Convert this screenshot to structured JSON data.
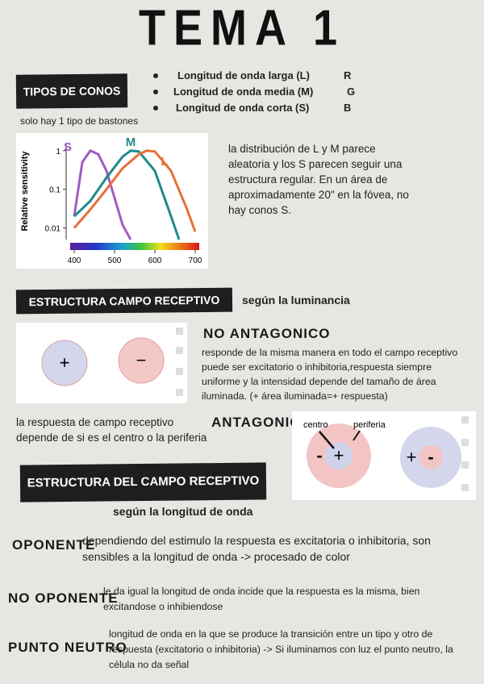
{
  "title": "TEMA 1",
  "tipos": {
    "label": "TIPOS DE CONOS",
    "note": "solo hay 1 tipo de bastones",
    "cones": [
      {
        "text": "Longitud de onda larga (L)",
        "letter": "R"
      },
      {
        "text": "Longitud de onda media (M)",
        "letter": "G"
      },
      {
        "text": "Longitud de onda corta (S)",
        "letter": "B"
      }
    ],
    "paragraph": "la distribución de L y M parece aleatoria y los S parecen seguir una estructura regular. En un área de aproximadamente 20\" en la fóvea, no hay conos S."
  },
  "chart_data": {
    "type": "line",
    "ylabel": "Relative sensitivity",
    "log_y": true,
    "xlim": [
      390,
      710
    ],
    "ylim": [
      0.005,
      1.6
    ],
    "xticks": [
      400,
      500,
      600,
      700
    ],
    "yticks": [
      1,
      0.1,
      0.01
    ],
    "series": [
      {
        "name": "S",
        "color": "#a05cc0",
        "x": [
          400,
          420,
          440,
          460,
          480,
          500,
          520,
          540
        ],
        "values": [
          0.02,
          0.5,
          1,
          0.8,
          0.3,
          0.06,
          0.012,
          0.005
        ]
      },
      {
        "name": "M",
        "color": "#1f8a8c",
        "x": [
          400,
          440,
          480,
          520,
          540,
          560,
          600,
          640,
          660
        ],
        "values": [
          0.02,
          0.05,
          0.2,
          0.7,
          1,
          0.95,
          0.3,
          0.02,
          0.005
        ]
      },
      {
        "name": "L",
        "color": "#e8703a",
        "x": [
          400,
          440,
          480,
          520,
          560,
          580,
          600,
          640,
          680,
          700
        ],
        "values": [
          0.01,
          0.03,
          0.1,
          0.35,
          0.8,
          1,
          0.95,
          0.3,
          0.03,
          0.008
        ]
      }
    ]
  },
  "luminancia": {
    "label": "ESTRUCTURA CAMPO RECEPTIVO",
    "subtitle": "según la luminancia",
    "no_antagonico": {
      "title": "NO ANTAGONICO",
      "text": "responde de la misma manera en todo el campo receptivo puede ser excitatorio o inhibitoria,respuesta siempre uniforme y la intensidad depende del tamaño de área iluminada. (+  área iluminada=+  respuesta)",
      "signs": [
        "+",
        "−"
      ]
    },
    "antagonico": {
      "title": "ANTAGONICO",
      "text": "la respuesta de campo receptivo depende de si es el centro o la periferia",
      "labels": [
        "centro",
        "periferia"
      ],
      "cells": [
        [
          "-",
          "+"
        ],
        [
          "+",
          "-"
        ]
      ]
    }
  },
  "longitud": {
    "label": "ESTRUCTURA DEL CAMPO RECEPTIVO",
    "subtitle": "según la longitud de onda",
    "items": [
      {
        "term": "OPONENTE",
        "text": "dependiendo del estimulo la respuesta es excitatoria o inhibitoria, son sensibles a la longitud de onda -> procesado de color"
      },
      {
        "term": "NO OPONENTE",
        "text": "le da igual la longitud de onda incide que la respuesta es la misma, bien excitandose o inhibiendose"
      },
      {
        "term": "PUNTO NEUTRO",
        "text": "longitud de onda en la que se produce la transición entre un tipo y otro de respuesta (excitatorio o inhibitoria) ->  Si iluminamos con luz el punto neutro, la célula no da señal"
      }
    ]
  }
}
